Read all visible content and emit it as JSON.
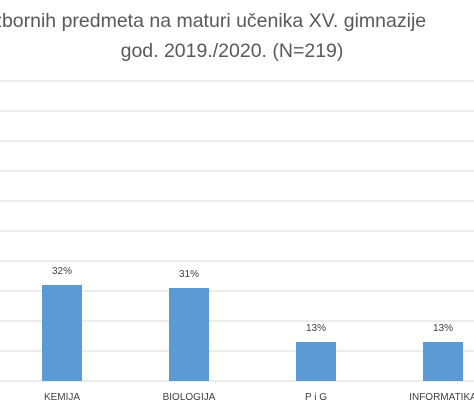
{
  "chart_data": {
    "type": "bar",
    "title_line1": "izbornih predmeta na maturi učenika XV. gimnazije",
    "title_line2": "god. 2019./2020. (N=219)",
    "categories": [
      "KEMIJA",
      "BIOLOGIJA",
      "P i G",
      "INFORMATIKA"
    ],
    "values": [
      32,
      31,
      13,
      13
    ],
    "data_labels": [
      "32%",
      "31%",
      "13%",
      "13%"
    ],
    "ylim": [
      0,
      100
    ],
    "grid": true,
    "bar_color": "#5b9bd5",
    "grid_color": "#d9d9d9"
  }
}
